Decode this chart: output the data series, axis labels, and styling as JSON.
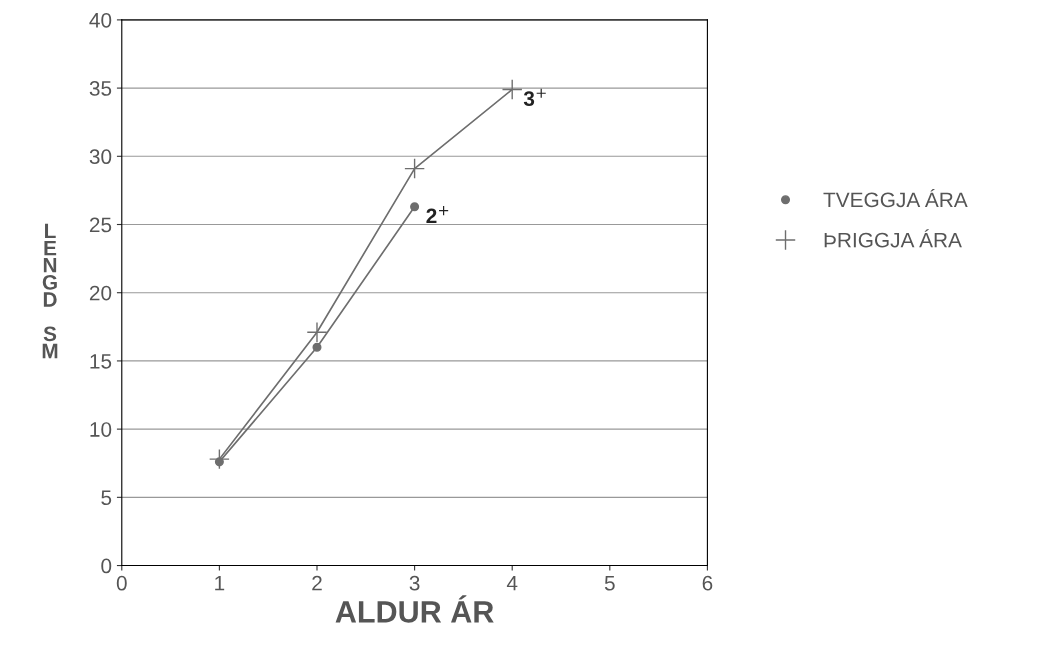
{
  "chart_data": {
    "type": "line",
    "xlabel": "ALDUR ÁR",
    "ylabel": "LENGD SM",
    "series": [
      {
        "name": "TVEGGJA ÁRA",
        "color": "#6e6e6e",
        "marker": "circle",
        "x": [
          1,
          2,
          3
        ],
        "values": [
          7.6,
          16.0,
          26.3
        ]
      },
      {
        "name": "ÞRIGGJA ÁRA",
        "color": "#6e6e6e",
        "marker": "cross",
        "x": [
          1,
          2,
          3,
          4
        ],
        "values": [
          7.8,
          17.1,
          29.1,
          34.9
        ]
      }
    ],
    "annotations": [
      {
        "text": "2$^{+}$",
        "x": 3,
        "y": 26.3
      },
      {
        "text": "3$^{+}$",
        "x": 4,
        "y": 34.9
      }
    ],
    "xlim": [
      0,
      6
    ],
    "xticks": [
      0,
      1,
      2,
      3,
      4,
      5,
      6
    ],
    "ylim": [
      0,
      40
    ],
    "yticks": [
      0,
      5,
      10,
      15,
      20,
      25,
      30,
      35,
      40
    ],
    "grid": "y",
    "legend": "right",
    "line_style": "solid"
  }
}
